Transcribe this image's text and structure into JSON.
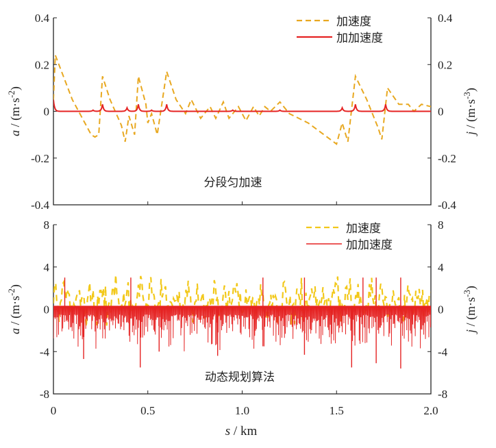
{
  "chart_data": [
    {
      "type": "line",
      "annotation": "分段匀加速",
      "xlim": [
        0,
        2.0
      ],
      "ylim_left": [
        -0.4,
        0.4
      ],
      "ylim_right": [
        -0.4,
        0.4
      ],
      "yticks_left": [
        "0.4",
        "0.2",
        "0",
        "-0.2",
        "-0.4"
      ],
      "yticks_right": [
        "0.4",
        "0.2",
        "0",
        "-0.2",
        "-0.4"
      ],
      "ylabel_left": {
        "var": "a",
        "unit": " / (m·s",
        "exp": "-2",
        ")": ")"
      },
      "ylabel_right": {
        "var": "j",
        "unit": " / (m·s",
        "exp": "-3",
        ")": ")"
      },
      "legend": [
        "加速度",
        "加加速度"
      ],
      "legend_position": "top-right",
      "colors": {
        "accel": "#e8a820",
        "jerk": "#e52222"
      },
      "series": [
        {
          "name": "加速度",
          "style": "dashed",
          "points": [
            [
              0,
              0.05
            ],
            [
              0.01,
              0.24
            ],
            [
              0.1,
              0.05
            ],
            [
              0.2,
              -0.1
            ],
            [
              0.22,
              -0.11
            ],
            [
              0.24,
              -0.1
            ],
            [
              0.26,
              0.15
            ],
            [
              0.3,
              0.05
            ],
            [
              0.36,
              -0.06
            ],
            [
              0.38,
              -0.13
            ],
            [
              0.4,
              -0.02
            ],
            [
              0.43,
              -0.1
            ],
            [
              0.45,
              0.15
            ],
            [
              0.49,
              0.03
            ],
            [
              0.5,
              -0.05
            ],
            [
              0.52,
              -0.01
            ],
            [
              0.55,
              -0.1
            ],
            [
              0.6,
              0.17
            ],
            [
              0.65,
              0.05
            ],
            [
              0.7,
              -0.01
            ],
            [
              0.73,
              0.05
            ],
            [
              0.78,
              -0.03
            ],
            [
              0.83,
              0.02
            ],
            [
              0.86,
              -0.03
            ],
            [
              0.9,
              0.04
            ],
            [
              0.93,
              -0.03
            ],
            [
              0.98,
              0.02
            ],
            [
              1.02,
              -0.04
            ],
            [
              1.06,
              0.02
            ],
            [
              1.09,
              -0.02
            ],
            [
              1.12,
              0.02
            ],
            [
              1.15,
              0.0
            ],
            [
              1.2,
              0.04
            ],
            [
              1.25,
              -0.01
            ],
            [
              1.35,
              -0.05
            ],
            [
              1.5,
              -0.14
            ],
            [
              1.53,
              -0.05
            ],
            [
              1.56,
              -0.13
            ],
            [
              1.6,
              0.15
            ],
            [
              1.66,
              0.05
            ],
            [
              1.72,
              -0.07
            ],
            [
              1.74,
              -0.12
            ],
            [
              1.77,
              0.1
            ],
            [
              1.83,
              0.03
            ],
            [
              1.88,
              0.03
            ],
            [
              1.91,
              0.0
            ],
            [
              1.95,
              0.03
            ],
            [
              2.0,
              0.02
            ]
          ]
        },
        {
          "name": "加加速度",
          "style": "solid",
          "baseline": 0.0,
          "spikes": [
            [
              0.0,
              0.05
            ],
            [
              0.21,
              0.005
            ],
            [
              0.26,
              0.03
            ],
            [
              0.39,
              0.015
            ],
            [
              0.45,
              0.03
            ],
            [
              0.52,
              0.005
            ],
            [
              0.6,
              0.03
            ],
            [
              0.95,
              0.005
            ],
            [
              1.2,
              0.005
            ],
            [
              1.53,
              0.015
            ],
            [
              1.6,
              0.03
            ],
            [
              1.76,
              0.03
            ]
          ]
        }
      ]
    },
    {
      "type": "line",
      "annotation": "动态规划算法",
      "xlim": [
        0,
        2.0
      ],
      "ylim_left": [
        -8,
        8
      ],
      "ylim_right": [
        -8,
        8
      ],
      "xticks": [
        "0",
        "0.5",
        "1.0",
        "1.5",
        "2.0"
      ],
      "xlabel": {
        "var": "s",
        "unit": " / km"
      },
      "yticks_left": [
        "8",
        "4",
        "0",
        "-4",
        "-8"
      ],
      "yticks_right": [
        "8",
        "4",
        "0",
        "-4",
        "-8"
      ],
      "ylabel_left": {
        "var": "a",
        "unit": " / (m·s",
        "exp": "-2",
        ")": ")"
      },
      "ylabel_right": {
        "var": "j",
        "unit": " / (m·s",
        "exp": "-3",
        ")": ")"
      },
      "legend": [
        "加速度",
        "加加速度"
      ],
      "legend_position": "top-right",
      "colors": {
        "accel": "#f2c81a",
        "jerk": "#e52222"
      },
      "series": [
        {
          "name": "加速度",
          "style": "dashed",
          "range": [
            -3.2,
            3.3
          ],
          "mean": 0.8
        },
        {
          "name": "加加速度",
          "style": "solid",
          "baseline": 0.3,
          "range": [
            -5.6,
            3.0
          ],
          "big_spikes": [
            [
              0.06,
              3.0
            ],
            [
              0.16,
              -4.7
            ],
            [
              0.41,
              3.0
            ],
            [
              0.46,
              -5.5
            ],
            [
              0.56,
              -4.0
            ],
            [
              0.87,
              -4.4
            ],
            [
              1.11,
              3.0
            ],
            [
              1.11,
              -3.5
            ],
            [
              1.33,
              3.0
            ],
            [
              1.33,
              -4.3
            ],
            [
              1.58,
              -5.5
            ],
            [
              1.64,
              3.0
            ],
            [
              1.71,
              3.0
            ],
            [
              1.71,
              -5.1
            ],
            [
              1.84,
              3.0
            ],
            [
              1.84,
              -5.6
            ]
          ]
        }
      ]
    }
  ]
}
